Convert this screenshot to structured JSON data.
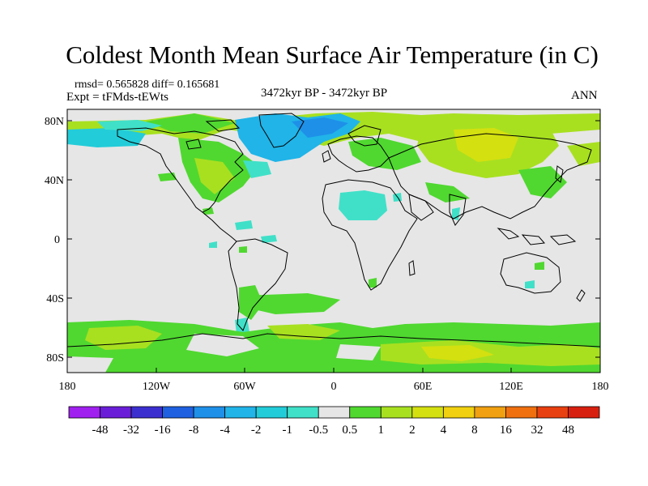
{
  "title": "Coldest Month Mean Surface Air Temperature (in C)",
  "stats": "rmsd= 0.565828 diff= 0.165681",
  "expt": "Expt = tFMds-tEWts",
  "period": "3472kyr BP - 3472kyr BP",
  "season": "ANN",
  "lat_ticks": [
    "80N",
    "40N",
    "0",
    "40S",
    "80S"
  ],
  "lon_ticks": [
    "180",
    "120W",
    "60W",
    "0",
    "60E",
    "120E",
    "180"
  ],
  "colorbar": {
    "labels": [
      "-48",
      "-32",
      "-16",
      "-8",
      "-4",
      "-2",
      "-1",
      "-0.5",
      "0.5",
      "1",
      "2",
      "4",
      "8",
      "16",
      "32",
      "48"
    ],
    "colors": [
      "#a020f0",
      "#6a1ed8",
      "#3c2fd0",
      "#1e60e0",
      "#1e90e8",
      "#20b4e8",
      "#22ccd8",
      "#40e0c8",
      "#e6e6e6",
      "#50d830",
      "#a8e020",
      "#d4e010",
      "#f0d010",
      "#f0a010",
      "#f07010",
      "#e84010",
      "#d82010"
    ]
  },
  "colors": {
    "land_ocean_background": "#e6e6e6",
    "coastline": "#000000"
  }
}
